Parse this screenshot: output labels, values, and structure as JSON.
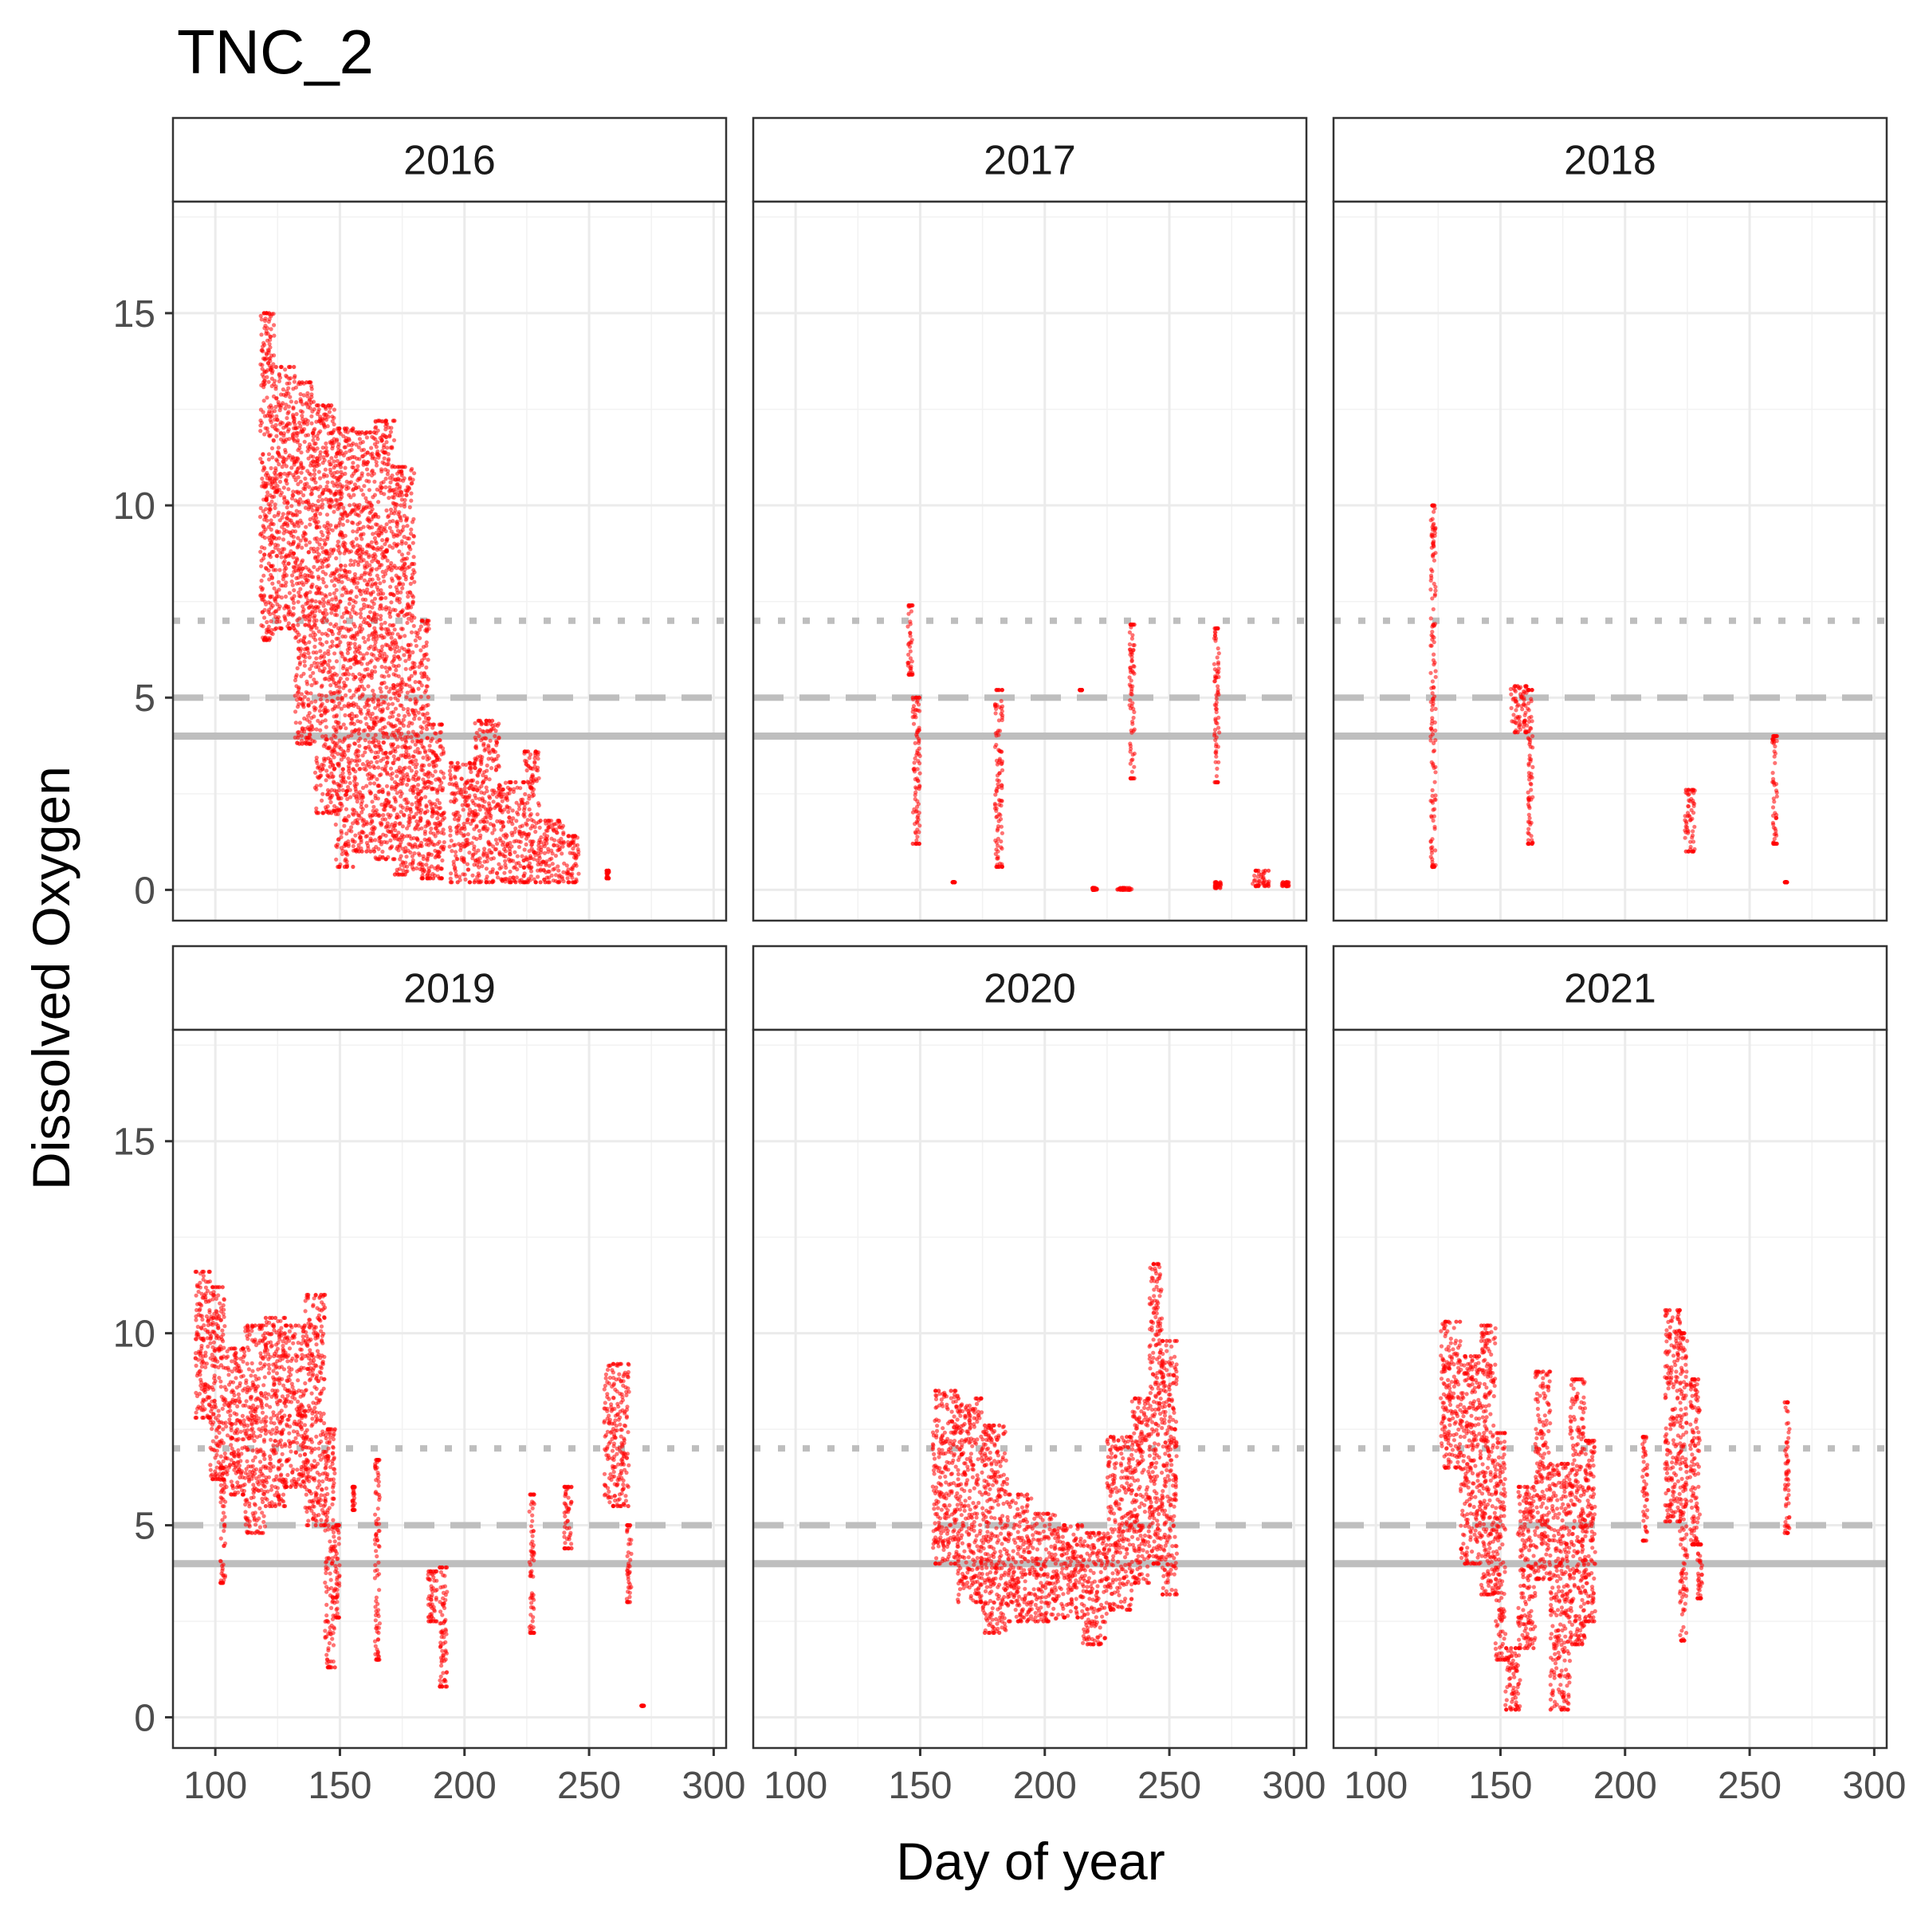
{
  "chart_data": {
    "type": "scatter",
    "title": "TNC_2",
    "xlabel": "Day of year",
    "ylabel": "Dissolved Oxygen",
    "xlim": [
      83,
      305
    ],
    "ylim": [
      -0.8,
      17.9
    ],
    "x_ticks": [
      100,
      150,
      200,
      250,
      300
    ],
    "y_ticks": [
      0,
      5,
      10,
      15
    ],
    "grid": true,
    "point_color": "#ff0000",
    "reference_lines": [
      {
        "y": 7,
        "style": "dotted",
        "color": "#bebebe"
      },
      {
        "y": 5,
        "style": "dashed",
        "color": "#bebebe"
      },
      {
        "y": 4,
        "style": "solid",
        "color": "#bebebe"
      }
    ],
    "panels": [
      {
        "label": "2016",
        "segments": [
          {
            "x": [
              118,
              124
            ],
            "ylo": 6.5,
            "yhi": 15.0
          },
          {
            "x": [
              124,
              132
            ],
            "ylo": 6.8,
            "yhi": 13.6
          },
          {
            "x": [
              132,
              140
            ],
            "ylo": 3.8,
            "yhi": 13.2
          },
          {
            "x": [
              140,
              148
            ],
            "ylo": 2.0,
            "yhi": 12.6
          },
          {
            "x": [
              148,
              156
            ],
            "ylo": 0.6,
            "yhi": 12.0
          },
          {
            "x": [
              156,
              164
            ],
            "ylo": 1.0,
            "yhi": 11.9
          },
          {
            "x": [
              164,
              172
            ],
            "ylo": 0.8,
            "yhi": 12.2
          },
          {
            "x": [
              172,
              180
            ],
            "ylo": 0.4,
            "yhi": 11.0
          },
          {
            "x": [
              180,
              186
            ],
            "ylo": 0.3,
            "yhi": 7.0
          },
          {
            "x": [
              186,
              192
            ],
            "ylo": 0.3,
            "yhi": 4.3
          },
          {
            "x": [
              194,
              204
            ],
            "ylo": 0.2,
            "yhi": 3.3
          },
          {
            "x": [
              204,
              214
            ],
            "ylo": 0.2,
            "yhi": 4.4
          },
          {
            "x": [
              214,
              224
            ],
            "ylo": 0.2,
            "yhi": 2.8
          },
          {
            "x": [
              224,
              230
            ],
            "ylo": 0.2,
            "yhi": 3.6
          },
          {
            "x": [
              230,
              240
            ],
            "ylo": 0.2,
            "yhi": 1.8
          },
          {
            "x": [
              241,
              246
            ],
            "ylo": 0.2,
            "yhi": 1.4
          },
          {
            "x": [
              257,
              258
            ],
            "ylo": 0.3,
            "yhi": 0.5
          }
        ]
      },
      {
        "label": "2017",
        "segments": [
          {
            "x": [
              145,
              147
            ],
            "ylo": 5.6,
            "yhi": 7.4
          },
          {
            "x": [
              147,
              150
            ],
            "ylo": 1.2,
            "yhi": 5.0
          },
          {
            "x": [
              180,
              183
            ],
            "ylo": 0.6,
            "yhi": 5.2
          },
          {
            "x": [
              163,
              164
            ],
            "ylo": 0.2,
            "yhi": 0.2
          },
          {
            "x": [
              214,
              215
            ],
            "ylo": 5.2,
            "yhi": 5.2
          },
          {
            "x": [
              234,
              236
            ],
            "ylo": 2.9,
            "yhi": 6.9
          },
          {
            "x": [
              268,
              270
            ],
            "ylo": 2.8,
            "yhi": 6.8
          },
          {
            "x": [
              219,
              221
            ],
            "ylo": 0.0,
            "yhi": 0.05
          },
          {
            "x": [
              229,
              235
            ],
            "ylo": 0.0,
            "yhi": 0.05
          },
          {
            "x": [
              268,
              271
            ],
            "ylo": 0.05,
            "yhi": 0.2
          },
          {
            "x": [
              283,
              290
            ],
            "ylo": 0.1,
            "yhi": 0.5
          },
          {
            "x": [
              295,
              298
            ],
            "ylo": 0.1,
            "yhi": 0.2
          }
        ]
      },
      {
        "label": "2018",
        "segments": [
          {
            "x": [
              122,
              124
            ],
            "ylo": 0.6,
            "yhi": 10.0
          },
          {
            "x": [
              154,
              161
            ],
            "ylo": 4.1,
            "yhi": 5.3
          },
          {
            "x": [
              161,
              163
            ],
            "ylo": 1.2,
            "yhi": 5.2
          },
          {
            "x": [
              224,
              228
            ],
            "ylo": 1.0,
            "yhi": 2.6
          },
          {
            "x": [
              259,
              261
            ],
            "ylo": 1.2,
            "yhi": 4.0
          },
          {
            "x": [
              264,
              265
            ],
            "ylo": 0.2,
            "yhi": 0.2
          }
        ]
      },
      {
        "label": "2019",
        "segments": [
          {
            "x": [
              92,
              98
            ],
            "ylo": 7.8,
            "yhi": 11.6
          },
          {
            "x": [
              98,
              104
            ],
            "ylo": 6.2,
            "yhi": 11.2
          },
          {
            "x": [
              102,
              104
            ],
            "ylo": 3.5,
            "yhi": 6.5
          },
          {
            "x": [
              104,
              112
            ],
            "ylo": 5.8,
            "yhi": 9.6
          },
          {
            "x": [
              112,
              120
            ],
            "ylo": 4.8,
            "yhi": 10.2
          },
          {
            "x": [
              120,
              128
            ],
            "ylo": 5.5,
            "yhi": 10.4
          },
          {
            "x": [
              128,
              136
            ],
            "ylo": 6.0,
            "yhi": 10.2
          },
          {
            "x": [
              136,
              144
            ],
            "ylo": 5.0,
            "yhi": 11.0
          },
          {
            "x": [
              144,
              148
            ],
            "ylo": 1.3,
            "yhi": 7.5
          },
          {
            "x": [
              148,
              150
            ],
            "ylo": 2.6,
            "yhi": 5.0
          },
          {
            "x": [
              155,
              156
            ],
            "ylo": 5.4,
            "yhi": 6.0
          },
          {
            "x": [
              164,
              166
            ],
            "ylo": 1.5,
            "yhi": 6.7
          },
          {
            "x": [
              185,
              189
            ],
            "ylo": 2.5,
            "yhi": 3.8
          },
          {
            "x": [
              190,
              193
            ],
            "ylo": 0.8,
            "yhi": 3.9
          },
          {
            "x": [
              226,
              228
            ],
            "ylo": 2.2,
            "yhi": 5.8
          },
          {
            "x": [
              240,
              243
            ],
            "ylo": 4.4,
            "yhi": 6.0
          },
          {
            "x": [
              256,
              266
            ],
            "ylo": 5.5,
            "yhi": 9.2
          },
          {
            "x": [
              265,
              267
            ],
            "ylo": 3.0,
            "yhi": 5.0
          },
          {
            "x": [
              271,
              272
            ],
            "ylo": 0.3,
            "yhi": 0.3
          }
        ]
      },
      {
        "label": "2020",
        "segments": [
          {
            "x": [
              155,
              165
            ],
            "ylo": 4.0,
            "yhi": 8.5
          },
          {
            "x": [
              165,
              175
            ],
            "ylo": 3.0,
            "yhi": 8.3
          },
          {
            "x": [
              175,
              185
            ],
            "ylo": 2.2,
            "yhi": 7.6
          },
          {
            "x": [
              185,
              195
            ],
            "ylo": 2.5,
            "yhi": 5.8
          },
          {
            "x": [
              195,
              205
            ],
            "ylo": 2.5,
            "yhi": 5.3
          },
          {
            "x": [
              205,
              215
            ],
            "ylo": 2.6,
            "yhi": 5.0
          },
          {
            "x": [
              215,
              225
            ],
            "ylo": 1.9,
            "yhi": 4.8
          },
          {
            "x": [
              225,
              235
            ],
            "ylo": 2.8,
            "yhi": 7.3
          },
          {
            "x": [
              235,
              242
            ],
            "ylo": 3.5,
            "yhi": 8.3
          },
          {
            "x": [
              242,
              247
            ],
            "ylo": 4.0,
            "yhi": 11.8
          },
          {
            "x": [
              247,
              253
            ],
            "ylo": 3.2,
            "yhi": 9.8
          }
        ]
      },
      {
        "label": "2021",
        "segments": [
          {
            "x": [
              126,
              134
            ],
            "ylo": 6.5,
            "yhi": 10.3
          },
          {
            "x": [
              134,
              142
            ],
            "ylo": 4.0,
            "yhi": 9.4
          },
          {
            "x": [
              142,
              148
            ],
            "ylo": 3.2,
            "yhi": 10.2
          },
          {
            "x": [
              148,
              152
            ],
            "ylo": 1.5,
            "yhi": 7.4
          },
          {
            "x": [
              152,
              158
            ],
            "ylo": 0.2,
            "yhi": 1.8
          },
          {
            "x": [
              157,
              164
            ],
            "ylo": 1.8,
            "yhi": 6.0
          },
          {
            "x": [
              164,
              170
            ],
            "ylo": 3.6,
            "yhi": 9.0
          },
          {
            "x": [
              170,
              178
            ],
            "ylo": 0.2,
            "yhi": 6.6
          },
          {
            "x": [
              178,
              184
            ],
            "ylo": 1.9,
            "yhi": 8.8
          },
          {
            "x": [
              184,
              188
            ],
            "ylo": 2.5,
            "yhi": 7.2
          },
          {
            "x": [
              207,
              209
            ],
            "ylo": 4.6,
            "yhi": 7.3
          },
          {
            "x": [
              216,
              222
            ],
            "ylo": 5.1,
            "yhi": 10.6
          },
          {
            "x": [
              222,
              225
            ],
            "ylo": 2.0,
            "yhi": 10.0
          },
          {
            "x": [
              226,
              230
            ],
            "ylo": 4.5,
            "yhi": 8.8
          },
          {
            "x": [
              229,
              231
            ],
            "ylo": 3.1,
            "yhi": 4.5
          },
          {
            "x": [
              264,
              266
            ],
            "ylo": 4.8,
            "yhi": 8.2
          }
        ]
      }
    ]
  }
}
